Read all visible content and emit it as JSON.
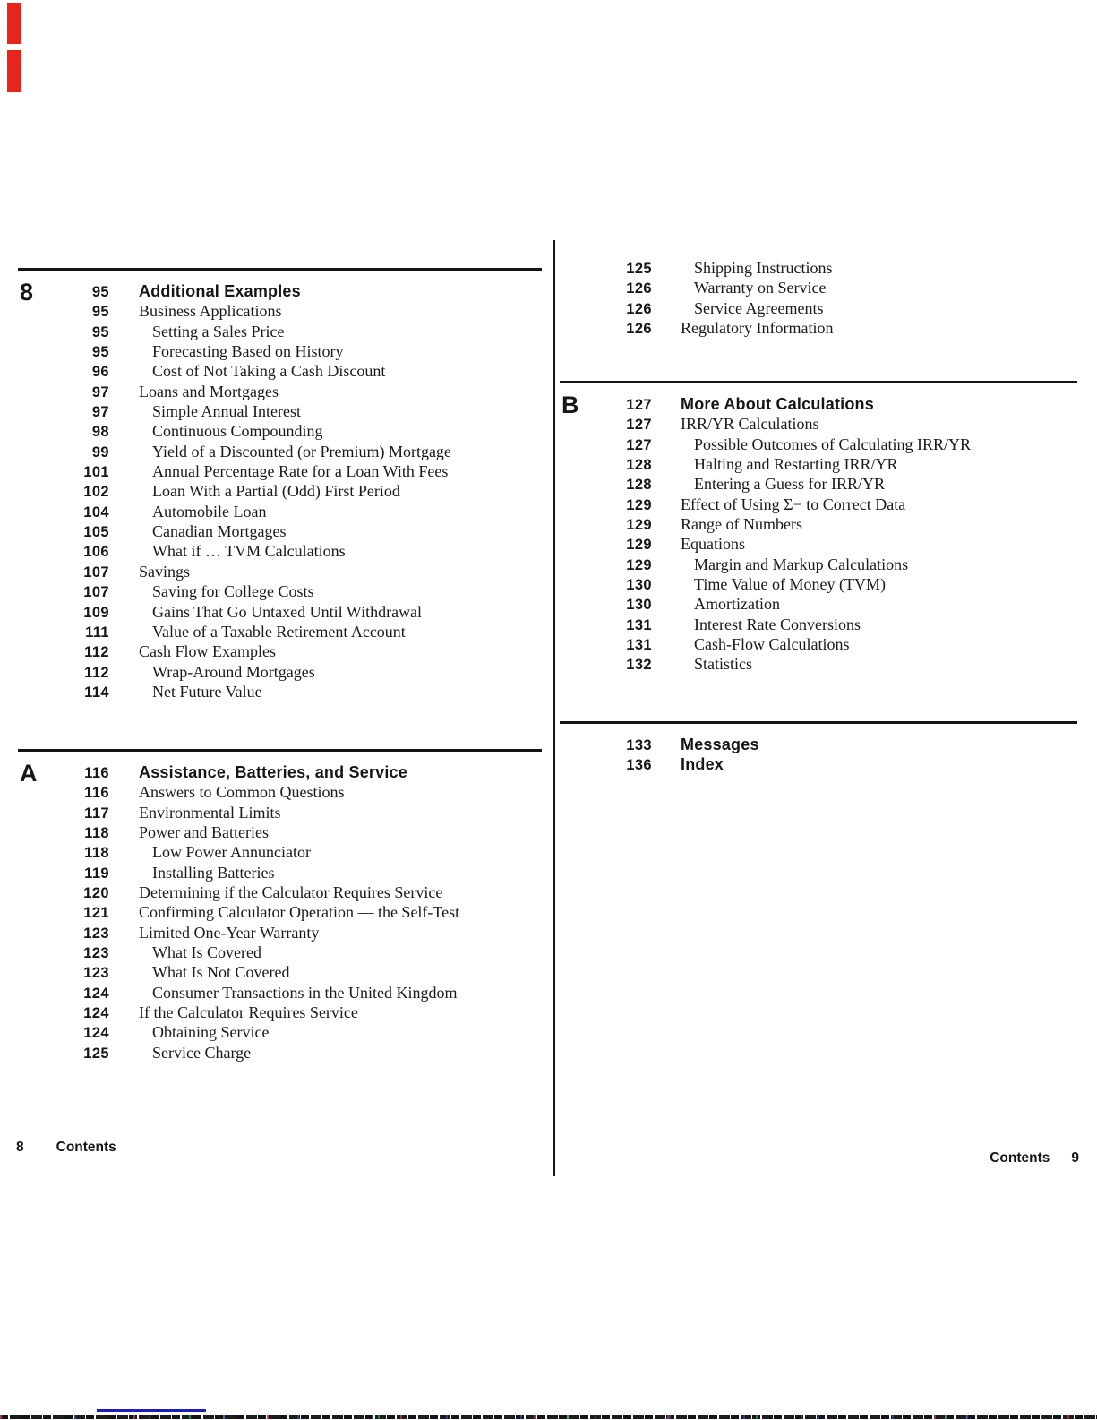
{
  "toc": {
    "left_sections": [
      {
        "chapter": "8",
        "rule": true,
        "entries": [
          {
            "page": "95",
            "title": "Additional Examples",
            "level": 0,
            "heading": true
          },
          {
            "page": "95",
            "title": "Business Applications",
            "level": 1
          },
          {
            "page": "95",
            "title": "Setting a Sales Price",
            "level": 2
          },
          {
            "page": "95",
            "title": "Forecasting Based on History",
            "level": 2
          },
          {
            "page": "96",
            "title": "Cost of Not Taking a Cash Discount",
            "level": 2
          },
          {
            "page": "97",
            "title": "Loans and Mortgages",
            "level": 1
          },
          {
            "page": "97",
            "title": "Simple Annual Interest",
            "level": 2
          },
          {
            "page": "98",
            "title": "Continuous Compounding",
            "level": 2
          },
          {
            "page": "99",
            "title": "Yield of a Discounted (or Premium) Mortgage",
            "level": 2
          },
          {
            "page": "101",
            "title": "Annual Percentage Rate for a Loan With Fees",
            "level": 2
          },
          {
            "page": "102",
            "title": "Loan With a Partial (Odd) First Period",
            "level": 2
          },
          {
            "page": "104",
            "title": "Automobile Loan",
            "level": 2
          },
          {
            "page": "105",
            "title": "Canadian Mortgages",
            "level": 2
          },
          {
            "page": "106",
            "title": "What if … TVM Calculations",
            "level": 2
          },
          {
            "page": "107",
            "title": "Savings",
            "level": 1
          },
          {
            "page": "107",
            "title": "Saving for College Costs",
            "level": 2
          },
          {
            "page": "109",
            "title": "Gains That Go Untaxed Until Withdrawal",
            "level": 2
          },
          {
            "page": "111",
            "title": "Value of a Taxable Retirement Account",
            "level": 2
          },
          {
            "page": "112",
            "title": "Cash Flow Examples",
            "level": 1
          },
          {
            "page": "112",
            "title": "Wrap-Around Mortgages",
            "level": 2
          },
          {
            "page": "114",
            "title": "Net Future Value",
            "level": 2
          }
        ]
      },
      {
        "chapter": "A",
        "rule": true,
        "entries": [
          {
            "page": "116",
            "title": "Assistance, Batteries, and Service",
            "level": 0,
            "heading": true
          },
          {
            "page": "116",
            "title": "Answers to Common Questions",
            "level": 1
          },
          {
            "page": "117",
            "title": "Environmental Limits",
            "level": 1
          },
          {
            "page": "118",
            "title": "Power and Batteries",
            "level": 1
          },
          {
            "page": "118",
            "title": "Low Power Annunciator",
            "level": 2
          },
          {
            "page": "119",
            "title": "Installing Batteries",
            "level": 2
          },
          {
            "page": "120",
            "title": "Determining if the Calculator Requires Service",
            "level": 1
          },
          {
            "page": "121",
            "title": "Confirming Calculator Operation — the Self-Test",
            "level": 1
          },
          {
            "page": "123",
            "title": "Limited One-Year Warranty",
            "level": 1
          },
          {
            "page": "123",
            "title": "What Is Covered",
            "level": 2
          },
          {
            "page": "123",
            "title": "What Is Not Covered",
            "level": 2
          },
          {
            "page": "124",
            "title": "Consumer Transactions in the United Kingdom",
            "level": 2
          },
          {
            "page": "124",
            "title": "If the Calculator Requires Service",
            "level": 1
          },
          {
            "page": "124",
            "title": "Obtaining Service",
            "level": 2
          },
          {
            "page": "125",
            "title": "Service Charge",
            "level": 2
          }
        ]
      }
    ],
    "right_sections": [
      {
        "chapter": "",
        "rule": false,
        "entries": [
          {
            "page": "125",
            "title": "Shipping Instructions",
            "level": 2
          },
          {
            "page": "126",
            "title": "Warranty on Service",
            "level": 2
          },
          {
            "page": "126",
            "title": "Service Agreements",
            "level": 2
          },
          {
            "page": "126",
            "title": "Regulatory Information",
            "level": 1
          }
        ]
      },
      {
        "chapter": "B",
        "rule": true,
        "entries": [
          {
            "page": "127",
            "title": "More About Calculations",
            "level": 0,
            "heading": true
          },
          {
            "page": "127",
            "title": "IRR/YR Calculations",
            "level": 1
          },
          {
            "page": "127",
            "title": "Possible Outcomes of Calculating IRR/YR",
            "level": 2
          },
          {
            "page": "128",
            "title": "Halting and Restarting IRR/YR",
            "level": 2
          },
          {
            "page": "128",
            "title": "Entering a Guess for IRR/YR",
            "level": 2
          },
          {
            "page": "129",
            "title": "Effect of Using Σ− to Correct Data",
            "level": 1
          },
          {
            "page": "129",
            "title": "Range of Numbers",
            "level": 1
          },
          {
            "page": "129",
            "title": "Equations",
            "level": 1
          },
          {
            "page": "129",
            "title": "Margin and Markup Calculations",
            "level": 2
          },
          {
            "page": "130",
            "title": "Time Value of Money (TVM)",
            "level": 2
          },
          {
            "page": "130",
            "title": "Amortization",
            "level": 2
          },
          {
            "page": "131",
            "title": "Interest Rate Conversions",
            "level": 2
          },
          {
            "page": "131",
            "title": "Cash-Flow Calculations",
            "level": 2
          },
          {
            "page": "132",
            "title": "Statistics",
            "level": 2
          }
        ]
      },
      {
        "chapter": "",
        "rule": true,
        "entries": [
          {
            "page": "133",
            "title": "Messages",
            "level": 0,
            "heading": true
          },
          {
            "page": "136",
            "title": "Index",
            "level": 0,
            "heading": true
          }
        ]
      }
    ]
  },
  "footers": {
    "left": {
      "page": "8",
      "label": "Contents"
    },
    "right": {
      "label": "Contents",
      "page": "9"
    }
  },
  "decor": {
    "ink_color": "#1a1a1a",
    "rule_color": "#151515",
    "red_mark_color": "#e8251d",
    "blue_line_color": "#1d1dbf"
  }
}
